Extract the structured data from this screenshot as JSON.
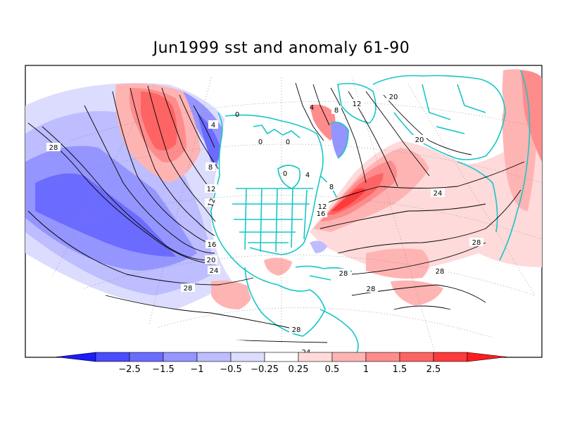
{
  "title": "Jun1999 sst and anomaly 61-90",
  "colorbar": {
    "ticks": [
      "-2.5",
      "-1.5",
      "-1",
      "-0.5",
      "-0.25",
      "0.25",
      "0.5",
      "1",
      "1.5",
      "2.5"
    ],
    "colors": [
      "#1b1bff",
      "#4a4aff",
      "#6b6bff",
      "#9595ff",
      "#bdbdff",
      "#dcdcff",
      "#ffffff",
      "#ffdada",
      "#ffb4b4",
      "#ff8c8c",
      "#ff6464",
      "#ff3a3a",
      "#ff1c1c"
    ]
  },
  "contour_labels": {
    "c1": "28",
    "c2": "8",
    "c3": "12",
    "c4": "12",
    "c5": "16",
    "c6": "20",
    "c7": "24",
    "c8": "28",
    "c9": "28",
    "c10": "24",
    "c11": "4",
    "c12": "0",
    "c13": "0",
    "c14": "0",
    "c15": "0",
    "c16": "4",
    "c17": "8",
    "c18": "12",
    "c19": "20",
    "c20": "4",
    "c21": "8",
    "c22": "12",
    "c23": "16",
    "c24": "20",
    "c25": "24",
    "c26": "28",
    "c27": "28",
    "c28": "28",
    "c29": "28",
    "c30": "24"
  }
}
